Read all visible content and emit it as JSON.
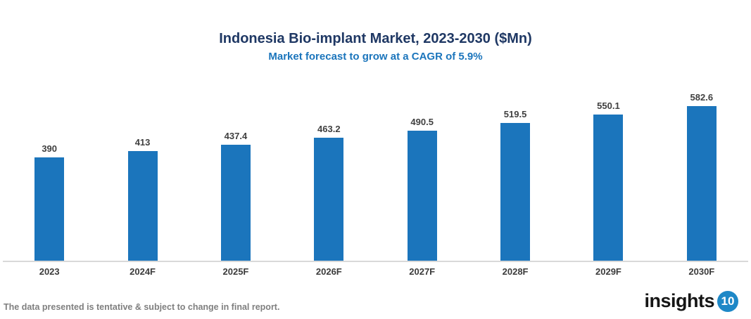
{
  "chart_data": {
    "type": "bar",
    "title": "Indonesia Bio-implant Market, 2023-2030 ($Mn)",
    "subtitle": "Market forecast to grow at a CAGR of 5.9%",
    "categories": [
      "2023",
      "2024F",
      "2025F",
      "2026F",
      "2027F",
      "2028F",
      "2029F",
      "2030F"
    ],
    "values": [
      390,
      413,
      437.4,
      463.2,
      490.5,
      519.5,
      550.1,
      582.6
    ],
    "xlabel": "",
    "ylabel": "",
    "ylim": [
      0,
      620
    ],
    "grid": false,
    "legend": false,
    "bar_color": "#1B75BC",
    "axis_line_color": "#D9D9D9",
    "title_color": "#1F3864",
    "subtitle_color": "#1B75BC",
    "label_color": "#404040"
  },
  "footer": {
    "note": "The data presented is tentative & subject to change in final report."
  },
  "logo": {
    "text": "insights",
    "badge": "10",
    "badge_color": "#1E88C7"
  }
}
